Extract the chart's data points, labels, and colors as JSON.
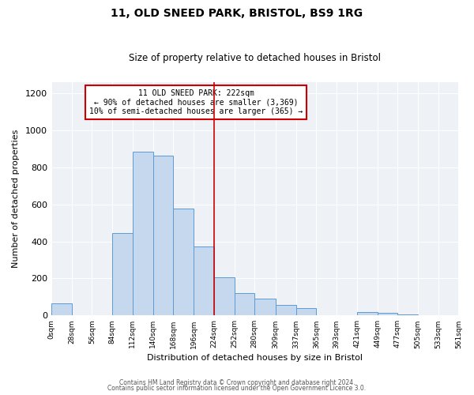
{
  "title": "11, OLD SNEED PARK, BRISTOL, BS9 1RG",
  "subtitle": "Size of property relative to detached houses in Bristol",
  "xlabel": "Distribution of detached houses by size in Bristol",
  "ylabel": "Number of detached properties",
  "bar_edges": [
    0,
    28,
    56,
    84,
    112,
    140,
    168,
    196,
    224,
    252,
    280,
    309,
    337,
    365,
    393,
    421,
    449,
    477,
    505,
    533,
    561
  ],
  "bar_heights": [
    65,
    0,
    0,
    445,
    884,
    862,
    578,
    375,
    205,
    120,
    90,
    55,
    40,
    0,
    0,
    20,
    15,
    5,
    0,
    0
  ],
  "bar_color": "#c5d8ed",
  "bar_edge_color": "#5b9bd5",
  "vline_x": 224,
  "vline_color": "#cc0000",
  "annotation_title": "11 OLD SNEED PARK: 222sqm",
  "annotation_line1": "← 90% of detached houses are smaller (3,369)",
  "annotation_line2": "10% of semi-detached houses are larger (365) →",
  "annotation_box_edge_color": "#cc0000",
  "ylim": [
    0,
    1260
  ],
  "xlim": [
    0,
    561
  ],
  "tick_labels": [
    "0sqm",
    "28sqm",
    "56sqm",
    "84sqm",
    "112sqm",
    "140sqm",
    "168sqm",
    "196sqm",
    "224sqm",
    "252sqm",
    "280sqm",
    "309sqm",
    "337sqm",
    "365sqm",
    "393sqm",
    "421sqm",
    "449sqm",
    "477sqm",
    "505sqm",
    "533sqm",
    "561sqm"
  ],
  "footer1": "Contains HM Land Registry data © Crown copyright and database right 2024.",
  "footer2": "Contains public sector information licensed under the Open Government Licence 3.0.",
  "background_color": "#eef2f7",
  "grid_color": "#ffffff",
  "title_fontsize": 10,
  "subtitle_fontsize": 8.5,
  "axis_label_fontsize": 8,
  "tick_fontsize": 6.5,
  "annotation_fontsize": 7,
  "footer_fontsize": 5.5
}
